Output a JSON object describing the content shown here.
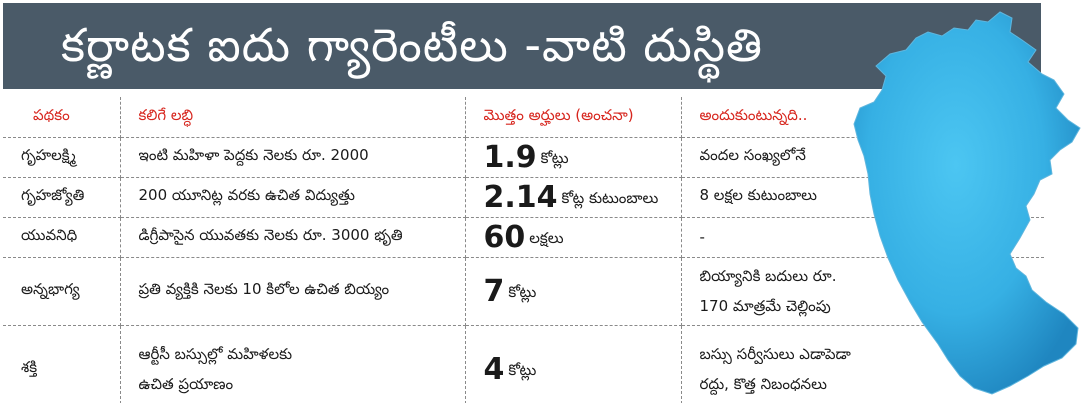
{
  "title": "కర్ణాటక ఐదు గ్యారెంటీలు -వాటి దుస్థితి",
  "headers": [
    "పథకం",
    "కలిగే లబ్ధి",
    "మొత్తం అర్హులు (అంచనా)",
    "అందుకుంటున్నది.."
  ],
  "rows": [
    {
      "scheme": "గృహలక్ష్మి",
      "benefit_lines": [
        "ఇంటి మహిళా పెద్దకు నెలకు రూ. 2000"
      ],
      "count_number": "1.9",
      "count_unit": "కోట్లు",
      "status_lines": [
        "వందల సంఖ్యలోనే"
      ]
    },
    {
      "scheme": "గృహజ్యోతి",
      "benefit_lines": [
        "200 యూనిట్ల వరకు ఉచిత విద్యుత్తు"
      ],
      "count_number": "2.14",
      "count_unit": "కోట్ల కుటుంబాలు",
      "status_lines": [
        "8 లక్షల కుటుంబాలు"
      ]
    },
    {
      "scheme": "యువనిధి",
      "benefit_lines": [
        "డిగ్రీపాసైన యువతకు నెలకు రూ. 3000 భృతి"
      ],
      "count_number": "60",
      "count_unit": "లక్షలు",
      "status_lines": [
        "-"
      ]
    },
    {
      "scheme": "అన్నభాగ్య",
      "benefit_lines": [
        "ప్రతి వ్యక్తికి నెలకు 10 కిలోల ఉచిత బియ్యం"
      ],
      "count_number": "7",
      "count_unit": "కోట్లు",
      "status_lines": [
        "బియ్యానికి బదులు రూ.",
        "170 మాత్రమే చెల్లింపు"
      ]
    },
    {
      "scheme": "శక్తి",
      "benefit_lines": [
        "ఆర్టీసీ బస్సుల్లో మహిళలకు",
        "ఉచిత ప్రయాణం"
      ],
      "count_number": "4",
      "count_unit": "కోట్లు",
      "status_lines": [
        "బస్సు సర్వీసులు ఎడాపెడా",
        "రద్దు, కొత్త నిబంధనలు"
      ]
    }
  ]
}
